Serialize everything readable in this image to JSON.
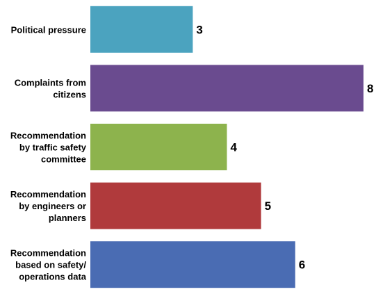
{
  "chart_data": {
    "type": "bar",
    "orientation": "horizontal",
    "categories": [
      "Political pressure",
      "Complaints from citizens",
      "Recommendation by traffic safety committee",
      "Recommendation by engineers or planners",
      "Recommendation based on safety/ operations data"
    ],
    "category_lines": [
      [
        "Political pressure"
      ],
      [
        "Complaints from",
        "citizens"
      ],
      [
        "Recommendation",
        "by traffic safety",
        "committee"
      ],
      [
        "Recommendation",
        "by engineers or",
        "planners"
      ],
      [
        "Recommendation",
        "based on safety/",
        "operations data"
      ]
    ],
    "values": [
      3,
      8,
      4,
      5,
      6
    ],
    "colors": [
      "#4ba3bf",
      "#6a4b8f",
      "#8db34d",
      "#b03a3c",
      "#4a6cb3"
    ],
    "xlim": [
      0,
      8
    ],
    "grid": false,
    "legend": "none",
    "title": "",
    "xlabel": "",
    "ylabel": ""
  }
}
